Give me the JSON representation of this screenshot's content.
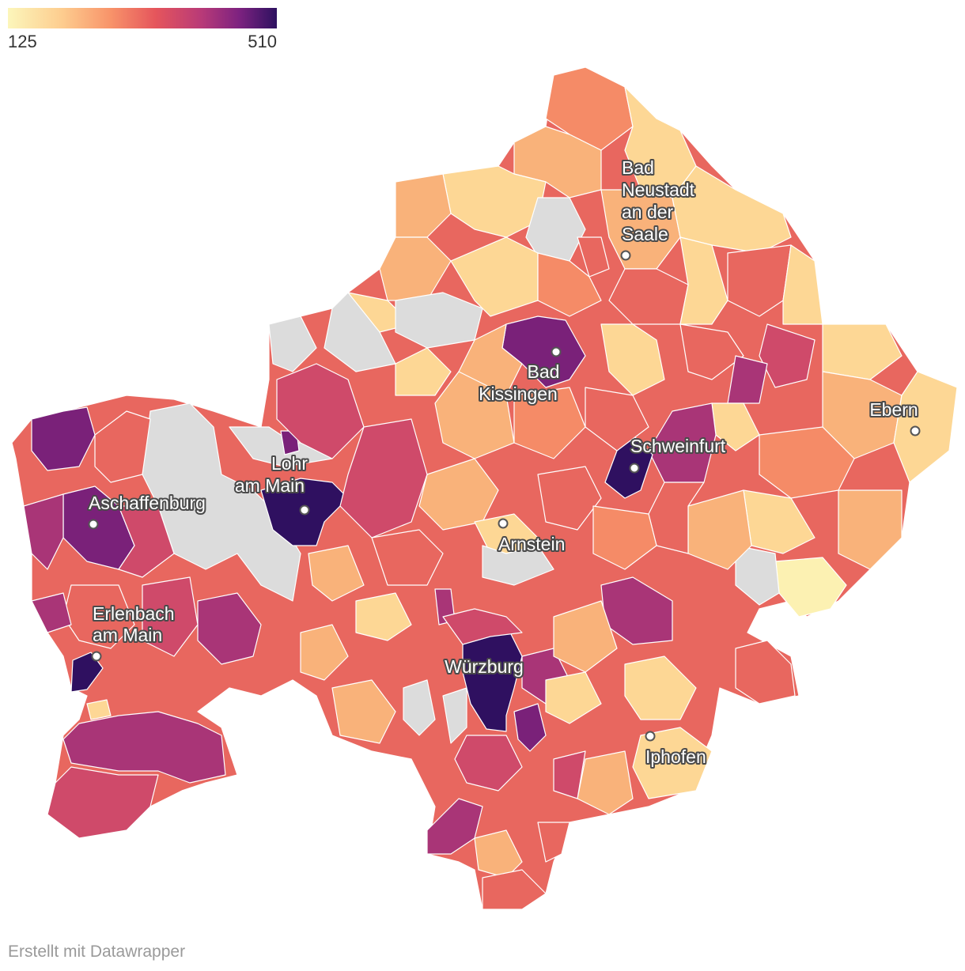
{
  "legend": {
    "min_label": "125",
    "max_label": "510",
    "colors": [
      "#fcf6bb",
      "#fdcd8f",
      "#f8946a",
      "#e5555c",
      "#b83a78",
      "#7d2280",
      "#2d1160"
    ]
  },
  "region_colors": {
    "no_data": "#dcdcdc",
    "level_1": "#fcf1b2",
    "level_2": "#fdd795",
    "level_3": "#f9b27a",
    "level_4": "#f58b67",
    "level_5": "#e8675f",
    "level_6": "#cf4a6a",
    "level_7": "#a93577",
    "level_8": "#7a2179",
    "level_9": "#2f1060"
  },
  "cities": [
    {
      "name": "Bad Neustadt an der Saale",
      "lines": [
        "Bad",
        "Neustadt",
        "an der",
        "Saale"
      ]
    },
    {
      "name": "Bad Kissingen",
      "lines": [
        "Bad",
        "Kissingen"
      ]
    },
    {
      "name": "Ebern",
      "lines": [
        "Ebern"
      ]
    },
    {
      "name": "Schweinfurt",
      "lines": [
        "Schweinfurt"
      ]
    },
    {
      "name": "Lohr am Main",
      "lines": [
        "Lohr",
        "am Main"
      ]
    },
    {
      "name": "Aschaffenburg",
      "lines": [
        "Aschaffenburg"
      ]
    },
    {
      "name": "Arnstein",
      "lines": [
        "Arnstein"
      ]
    },
    {
      "name": "Erlenbach am Main",
      "lines": [
        "Erlenbach",
        "am Main"
      ]
    },
    {
      "name": "Würzburg",
      "lines": [
        "Würzburg"
      ]
    },
    {
      "name": "Iphofen",
      "lines": [
        "Iphofen"
      ]
    }
  ],
  "footer": "Erstellt mit Datawrapper"
}
